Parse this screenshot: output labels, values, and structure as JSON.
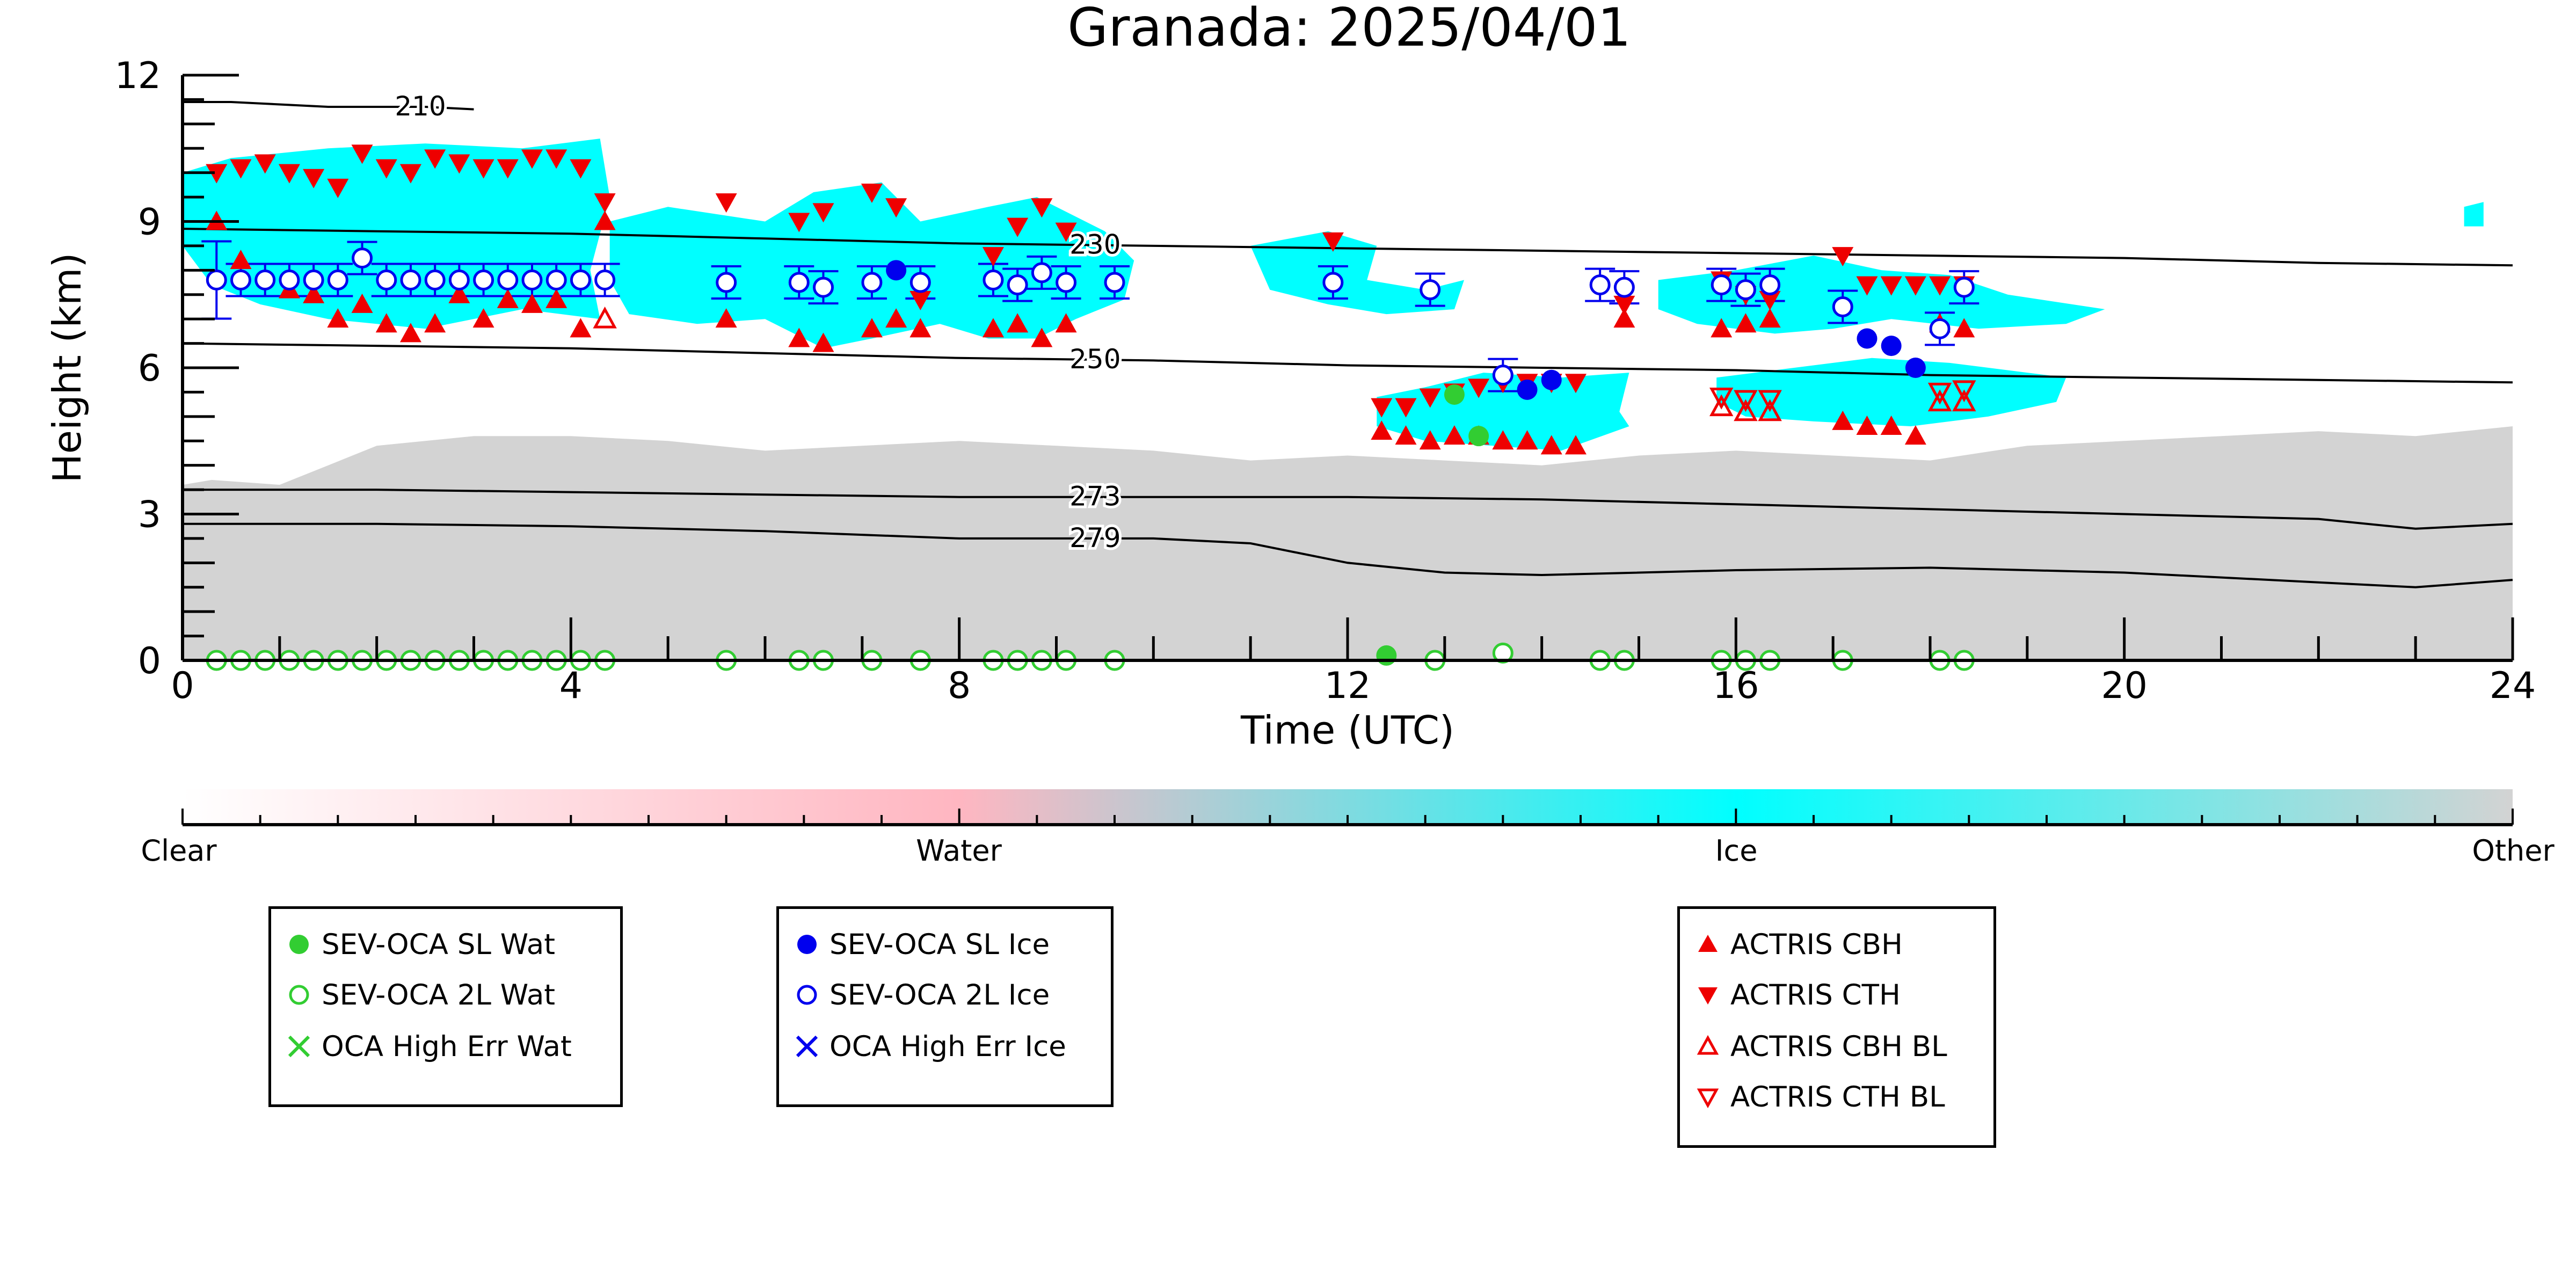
{
  "chart_data": {
    "type": "scatter",
    "title": "Granada: 2025/04/01",
    "xlabel": "Time (UTC)",
    "ylabel": "Height (km)",
    "xlim": [
      0,
      24
    ],
    "ylim": [
      0,
      12
    ],
    "xticks": [
      "0",
      "4",
      "8",
      "12",
      "16",
      "20",
      "24"
    ],
    "yticks": [
      "0",
      "3",
      "6",
      "9",
      "12"
    ],
    "grid": false,
    "colorbar": {
      "labels": [
        "Clear",
        "Water",
        "Ice",
        "Other"
      ],
      "colors": [
        "#ffffff",
        "#ffb6c1",
        "#00ffff",
        "#d3d3d3"
      ]
    },
    "temperature_contours": [
      {
        "label": "210",
        "x": [
          0,
          0.5,
          1,
          1.5,
          2,
          2.5,
          3.0
        ],
        "y": [
          11.45,
          11.45,
          11.4,
          11.35,
          11.35,
          11.35,
          11.3
        ]
      },
      {
        "label": "230",
        "x": [
          0,
          2,
          4,
          6,
          8,
          10,
          12,
          14,
          16,
          18,
          20,
          22,
          24
        ],
        "y": [
          8.85,
          8.8,
          8.75,
          8.65,
          8.55,
          8.5,
          8.45,
          8.4,
          8.35,
          8.3,
          8.25,
          8.15,
          8.1
        ]
      },
      {
        "label": "250",
        "x": [
          0,
          2,
          4,
          6,
          8,
          10,
          12,
          14,
          16,
          18,
          20,
          22,
          24
        ],
        "y": [
          6.5,
          6.45,
          6.4,
          6.3,
          6.2,
          6.15,
          6.05,
          6.0,
          5.95,
          5.85,
          5.8,
          5.75,
          5.7
        ]
      },
      {
        "label": "273",
        "x": [
          0,
          2,
          4,
          6,
          8,
          10,
          12,
          14,
          16,
          18,
          20,
          22,
          23,
          24
        ],
        "y": [
          3.5,
          3.5,
          3.45,
          3.4,
          3.35,
          3.35,
          3.35,
          3.3,
          3.2,
          3.1,
          3.0,
          2.9,
          2.7,
          2.8
        ]
      },
      {
        "label": "279",
        "x": [
          0,
          2,
          4,
          6,
          8,
          10,
          11,
          12,
          13,
          14,
          16,
          18,
          20,
          22,
          23,
          24
        ],
        "y": [
          2.8,
          2.8,
          2.75,
          2.65,
          2.5,
          2.5,
          2.4,
          2.0,
          1.8,
          1.75,
          1.85,
          1.9,
          1.8,
          1.6,
          1.5,
          1.65
        ]
      }
    ],
    "series": [
      {
        "name": "SEV-OCA SL Wat",
        "color": "#32cd32",
        "marker": "filled-circle",
        "x": [
          12.4,
          13.1,
          13.35
        ],
        "y": [
          0.1,
          5.45,
          4.6
        ]
      },
      {
        "name": "SEV-OCA 2L Wat",
        "color": "#32cd32",
        "marker": "open-circle",
        "x": [
          0.35,
          0.6,
          0.85,
          1.1,
          1.35,
          1.6,
          1.85,
          2.1,
          2.35,
          2.6,
          2.85,
          3.1,
          3.35,
          3.6,
          3.85,
          4.1,
          4.35,
          5.6,
          6.35,
          6.6,
          7.1,
          7.6,
          8.35,
          8.6,
          8.85,
          9.1,
          9.6,
          12.9,
          13.6,
          14.6,
          14.85,
          15.85,
          16.1,
          16.35,
          17.1,
          18.1,
          18.35
        ],
        "y": [
          0,
          0,
          0,
          0,
          0,
          0,
          0,
          0,
          0,
          0,
          0,
          0,
          0,
          0,
          0,
          0,
          0,
          0,
          0,
          0,
          0,
          0,
          0,
          0,
          0,
          0,
          0,
          0,
          0.15,
          0,
          0,
          0,
          0,
          0,
          0,
          0,
          0
        ]
      },
      {
        "name": "OCA High Err Wat",
        "color": "#32cd32",
        "marker": "x",
        "x": [],
        "y": []
      },
      {
        "name": "SEV-OCA SL Ice",
        "color": "#0000ee",
        "marker": "filled-circle",
        "x": [
          7.35,
          13.85,
          14.1,
          17.35,
          17.6,
          17.85
        ],
        "y": [
          8.0,
          5.55,
          5.75,
          6.6,
          6.45,
          6.0
        ]
      },
      {
        "name": "SEV-OCA 2L Ice",
        "color": "#0000ee",
        "marker": "open-circle",
        "x": [
          0.35,
          0.6,
          0.85,
          1.1,
          1.35,
          1.6,
          1.85,
          2.1,
          2.35,
          2.6,
          2.85,
          3.1,
          3.35,
          3.6,
          3.85,
          4.1,
          4.35,
          5.6,
          6.35,
          6.6,
          7.1,
          7.6,
          8.35,
          8.6,
          8.85,
          9.1,
          9.6,
          11.85,
          12.85,
          13.6,
          14.6,
          14.85,
          15.85,
          16.1,
          16.35,
          17.1,
          18.1,
          18.35
        ],
        "y": [
          7.8,
          7.8,
          7.8,
          7.8,
          7.8,
          7.8,
          8.25,
          7.8,
          7.8,
          7.8,
          7.8,
          7.8,
          7.8,
          7.8,
          7.8,
          7.8,
          7.8,
          7.75,
          7.75,
          7.65,
          7.75,
          7.75,
          7.8,
          7.7,
          7.95,
          7.75,
          7.75,
          7.75,
          7.6,
          5.85,
          7.7,
          7.65,
          7.7,
          7.6,
          7.7,
          7.25,
          6.8,
          7.65
        ]
      },
      {
        "name": "OCA High Err Ice",
        "color": "#0000ee",
        "marker": "x",
        "x": [],
        "y": []
      },
      {
        "name": "ACTRIS CBH",
        "color": "#ee0000",
        "marker": "filled-triangle-up",
        "x": [
          0.35,
          0.6,
          1.1,
          1.35,
          1.6,
          1.85,
          2.1,
          2.35,
          2.6,
          2.85,
          3.1,
          3.35,
          3.6,
          3.85,
          4.1,
          4.35,
          5.6,
          6.35,
          6.6,
          7.1,
          7.35,
          7.6,
          8.35,
          8.6,
          8.85,
          9.1,
          12.35,
          12.6,
          12.85,
          13.1,
          13.35,
          13.6,
          13.85,
          14.1,
          14.35,
          14.85,
          15.85,
          16.1,
          16.35,
          17.1,
          17.35,
          17.6,
          17.85,
          18.1,
          18.35
        ],
        "y": [
          9.0,
          8.2,
          7.6,
          7.5,
          7.0,
          7.3,
          6.9,
          6.7,
          6.9,
          7.5,
          7.0,
          7.4,
          7.3,
          7.4,
          6.8,
          9.0,
          7.0,
          6.6,
          6.5,
          6.8,
          7.0,
          6.8,
          6.8,
          6.9,
          6.6,
          6.9,
          4.7,
          4.6,
          4.5,
          4.6,
          4.6,
          4.5,
          4.5,
          4.4,
          4.4,
          7.0,
          6.8,
          6.9,
          7.0,
          4.9,
          4.8,
          4.8,
          4.6,
          6.9,
          6.8
        ]
      },
      {
        "name": "ACTRIS CTH",
        "color": "#ee0000",
        "marker": "filled-triangle-down",
        "x": [
          0.35,
          0.6,
          0.85,
          1.1,
          1.35,
          1.6,
          1.85,
          2.1,
          2.35,
          2.6,
          2.85,
          3.1,
          3.35,
          3.6,
          3.85,
          4.1,
          4.35,
          5.6,
          6.35,
          6.6,
          7.1,
          7.35,
          7.6,
          8.35,
          8.6,
          8.85,
          9.1,
          11.85,
          12.35,
          12.6,
          12.85,
          13.1,
          13.35,
          13.6,
          13.85,
          14.1,
          14.35,
          14.85,
          15.85,
          16.1,
          16.35,
          17.1,
          17.35,
          17.6,
          17.85,
          18.1,
          18.35
        ],
        "y": [
          10.0,
          10.1,
          10.2,
          10.0,
          9.9,
          9.7,
          10.4,
          10.1,
          10.0,
          10.3,
          10.2,
          10.1,
          10.1,
          10.3,
          10.3,
          10.1,
          9.4,
          9.4,
          9.0,
          9.2,
          9.6,
          9.3,
          7.4,
          8.3,
          8.9,
          9.3,
          8.8,
          8.6,
          5.2,
          5.2,
          5.4,
          5.5,
          5.6,
          5.7,
          5.7,
          5.7,
          5.7,
          7.3,
          7.8,
          7.5,
          7.4,
          8.3,
          7.7,
          7.7,
          7.7,
          7.7,
          7.7
        ]
      },
      {
        "name": "ACTRIS CBH BL",
        "color": "#ee0000",
        "marker": "open-triangle-up",
        "x": [
          4.35,
          15.85,
          16.1,
          16.35,
          18.1,
          18.35
        ],
        "y": [
          7.0,
          5.2,
          5.1,
          5.1,
          5.3,
          5.3
        ]
      },
      {
        "name": "ACTRIS CTH BL",
        "color": "#ee0000",
        "marker": "open-triangle-down",
        "x": [
          15.85,
          16.1,
          16.35,
          18.1,
          18.35
        ],
        "y": [
          5.4,
          5.35,
          5.35,
          5.5,
          5.55
        ]
      }
    ]
  },
  "legends": {
    "water": [
      "SEV-OCA SL Wat",
      "SEV-OCA 2L Wat",
      "OCA High Err Wat"
    ],
    "ice": [
      "SEV-OCA SL Ice",
      "SEV-OCA 2L Ice",
      "OCA High Err Ice"
    ],
    "actris": [
      "ACTRIS CBH",
      "ACTRIS CTH",
      "ACTRIS CBH BL",
      "ACTRIS CTH BL"
    ]
  },
  "colors": {
    "water_marker": "#32cd32",
    "ice_marker": "#0000ee",
    "actris_marker": "#ee0000",
    "ice_cloud": "#00ffff",
    "other_class": "#d3d3d3"
  }
}
